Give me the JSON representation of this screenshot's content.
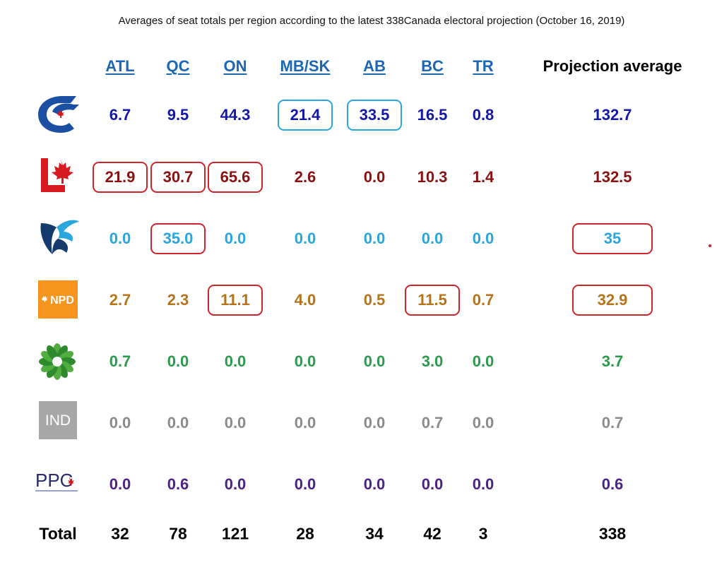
{
  "title": "Averages of seat totals per region according to the latest 338Canada electoral projection (October 16, 2019)",
  "chart_data": {
    "type": "table",
    "title": "Averages of seat totals per region according to the latest 338Canada electoral projection (October 16, 2019)",
    "columns": [
      "ATL",
      "QC",
      "ON",
      "MB/SK",
      "AB",
      "BC",
      "TR",
      "Projection average"
    ],
    "rows": [
      {
        "party": "conservative-icon",
        "color": "#1418a8",
        "values": [
          "6.7",
          "9.5",
          "44.3",
          "21.4",
          "33.5",
          "16.5",
          "0.8",
          "132.7"
        ]
      },
      {
        "party": "liberal-icon",
        "color": "#8b1111",
        "values": [
          "21.9",
          "30.7",
          "65.6",
          "2.6",
          "0.0",
          "10.3",
          "1.4",
          "132.5"
        ]
      },
      {
        "party": "bloc-icon",
        "color": "#2aa6de",
        "values": [
          "0.0",
          "35.0",
          "0.0",
          "0.0",
          "0.0",
          "0.0",
          "0.0",
          "35"
        ]
      },
      {
        "party": "ndp-icon",
        "color": "#b5731b",
        "values": [
          "2.7",
          "2.3",
          "11.1",
          "4.0",
          "0.5",
          "11.5",
          "0.7",
          "32.9"
        ]
      },
      {
        "party": "green-icon",
        "color": "#2a9a4b",
        "values": [
          "0.7",
          "0.0",
          "0.0",
          "0.0",
          "0.0",
          "3.0",
          "0.0",
          "3.7"
        ]
      },
      {
        "party": "independent-icon",
        "color": "#8b8b8b",
        "values": [
          "0.0",
          "0.0",
          "0.0",
          "0.0",
          "0.0",
          "0.7",
          "0.0",
          "0.7"
        ]
      },
      {
        "party": "ppc-icon",
        "color": "#4a2385",
        "values": [
          "0.0",
          "0.6",
          "0.0",
          "0.0",
          "0.0",
          "0.0",
          "0.0",
          "0.6"
        ]
      }
    ],
    "total_label": "Total",
    "totals": [
      "32",
      "78",
      "121",
      "28",
      "34",
      "42",
      "3",
      "338"
    ],
    "highlights": [
      {
        "row": 0,
        "col": 3,
        "color": "#2aa6de"
      },
      {
        "row": 0,
        "col": 4,
        "color": "#2aa6de"
      },
      {
        "row": 1,
        "col": 0,
        "color": "#d0242c"
      },
      {
        "row": 1,
        "col": 1,
        "color": "#d0242c"
      },
      {
        "row": 1,
        "col": 2,
        "color": "#d0242c"
      },
      {
        "row": 2,
        "col": 1,
        "color": "#d0242c"
      },
      {
        "row": 2,
        "col": 7,
        "color": "#d0242c"
      },
      {
        "row": 3,
        "col": 2,
        "color": "#d0242c"
      },
      {
        "row": 3,
        "col": 5,
        "color": "#d0242c"
      },
      {
        "row": 3,
        "col": 7,
        "color": "#d0242c"
      }
    ]
  },
  "logos": {
    "ndp_text": "NPD",
    "ind_text": "IND",
    "ppc_text": "PPC"
  },
  "colors": {
    "header_link": "#1c66b5",
    "conservative_blue": "#1b4fa3",
    "liberal_red": "#d71920",
    "bloc_navy": "#143b6b",
    "bloc_cyan": "#2aa6de",
    "ndp_orange": "#f7941d",
    "green_party": "#3d9b35",
    "ind_gray": "#a7a7a7",
    "ppc_navy": "#272a6c"
  }
}
